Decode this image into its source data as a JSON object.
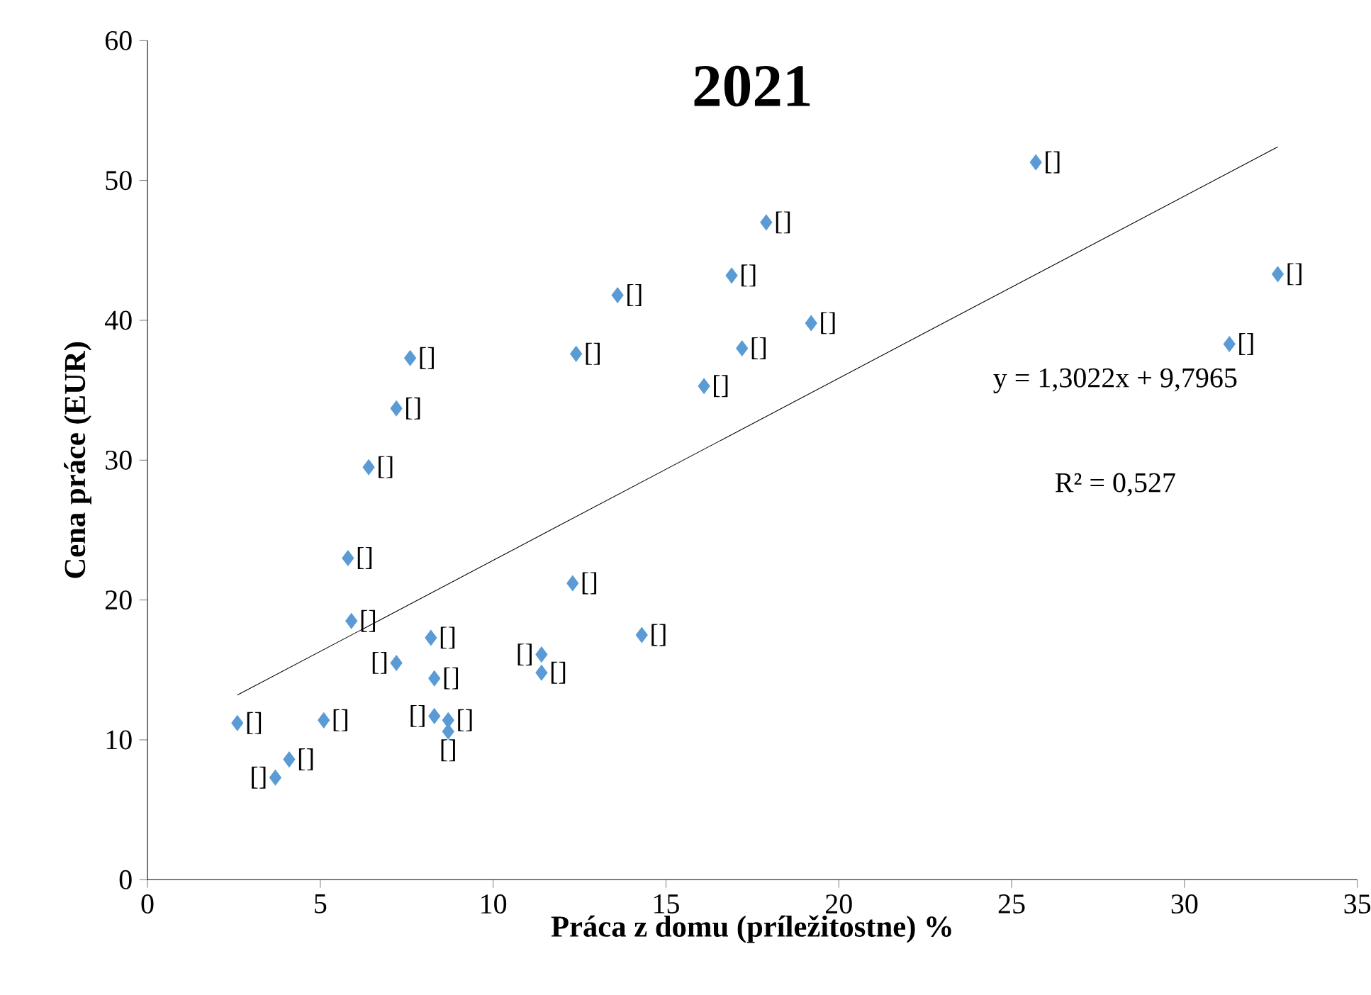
{
  "chart_data": {
    "type": "scatter",
    "title": "2021",
    "xlabel": "Práca z domu  (príležitostne) %",
    "ylabel": "Cena práce (EUR)",
    "xlim": [
      0,
      35
    ],
    "ylim": [
      0,
      60
    ],
    "xticks": [
      0,
      5,
      10,
      15,
      20,
      25,
      30,
      35
    ],
    "yticks": [
      0,
      10,
      20,
      30,
      40,
      50,
      60
    ],
    "grid": false,
    "marker": "diamond",
    "annotations": [
      "y = 1,3022x  + 9,7965",
      "R² = 0,527"
    ],
    "series": [
      {
        "color": "#5b9bd5",
        "x": [
          2.6,
          3.7,
          4.1,
          5.1,
          5.8,
          5.9,
          6.4,
          7.2,
          7.2,
          7.6,
          8.2,
          8.3,
          8.3,
          8.7,
          8.7,
          11.4,
          11.4,
          12.3,
          12.4,
          13.6,
          14.3,
          16.1,
          16.9,
          17.2,
          17.9,
          19.2,
          25.7,
          31.3,
          32.7
        ],
        "values": [
          11.2,
          7.3,
          8.6,
          11.4,
          23.0,
          18.5,
          29.5,
          33.7,
          15.5,
          37.3,
          17.3,
          14.4,
          11.7,
          11.4,
          10.6,
          14.8,
          16.1,
          21.2,
          37.6,
          41.8,
          17.5,
          35.3,
          43.2,
          38.0,
          47.0,
          39.8,
          51.3,
          38.3,
          43.3
        ],
        "value_labels": [
          "[]",
          "[]",
          "[]",
          "[]",
          "[]",
          "[]",
          "[]",
          "[]",
          "[]",
          "[]",
          "[]",
          "[]",
          "[]",
          "[]",
          "[]",
          "[]",
          "[]",
          "[]",
          "[]",
          "[]",
          "[]",
          "[]",
          "[]",
          "[]",
          "[]",
          "[]",
          "[]",
          "[]",
          "[]"
        ]
      },
      {
        "type": "line",
        "color": "#000000",
        "marker": "none",
        "x": [
          2.6,
          32.7
        ],
        "values": [
          13.2,
          52.4
        ]
      }
    ]
  }
}
